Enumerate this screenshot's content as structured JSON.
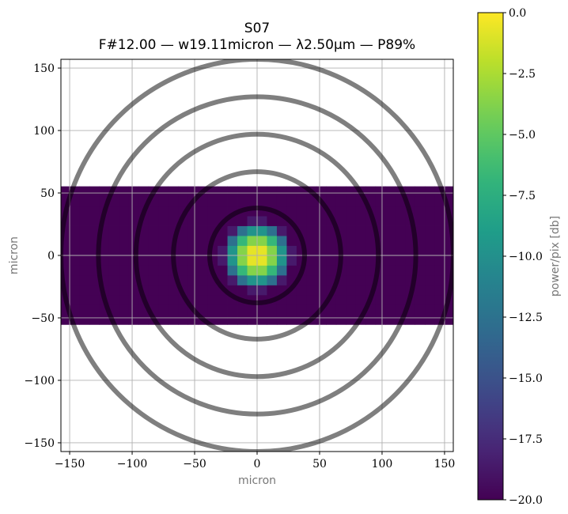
{
  "chart_data": {
    "type": "heatmap",
    "title": "S07",
    "subtitle": "F#12.00 — w19.11micron — λ2.50µm — P89%",
    "xlabel": "micron",
    "ylabel": "micron",
    "colorbar_label": "power/pix [db]",
    "xlim": [
      -157,
      157
    ],
    "ylim": [
      -157,
      157
    ],
    "xticks": [
      -150,
      -100,
      -50,
      0,
      50,
      100,
      150
    ],
    "yticks": [
      150,
      100,
      50,
      0,
      -50,
      -100,
      -150
    ],
    "xtick_labels": [
      "−150",
      "−100",
      "−50",
      "0",
      "50",
      "100",
      "150"
    ],
    "ytick_labels": [
      "150",
      "100",
      "50",
      "0",
      "−50",
      "−100",
      "−150"
    ],
    "colorbar_ticks": [
      0.0,
      -2.5,
      -5.0,
      -7.5,
      -10.0,
      -12.5,
      -15.0,
      -17.5,
      -20.0
    ],
    "colorbar_tick_labels": [
      "0.0",
      "−2.5",
      "−5.0",
      "−7.5",
      "−10.0",
      "−12.5",
      "−15.0",
      "−17.5",
      "−20.0"
    ],
    "colorbar_range": [
      -20.0,
      0.0
    ],
    "colormap": "viridis",
    "grid": true,
    "pixel_size_micron": 7.9,
    "field_half_height_micron": 55.3,
    "waist_micron": 19.11,
    "rings_radius_micron": [
      38,
      67,
      97,
      127,
      157
    ],
    "ring_color": "#000000",
    "ring_alpha": 0.5
  }
}
